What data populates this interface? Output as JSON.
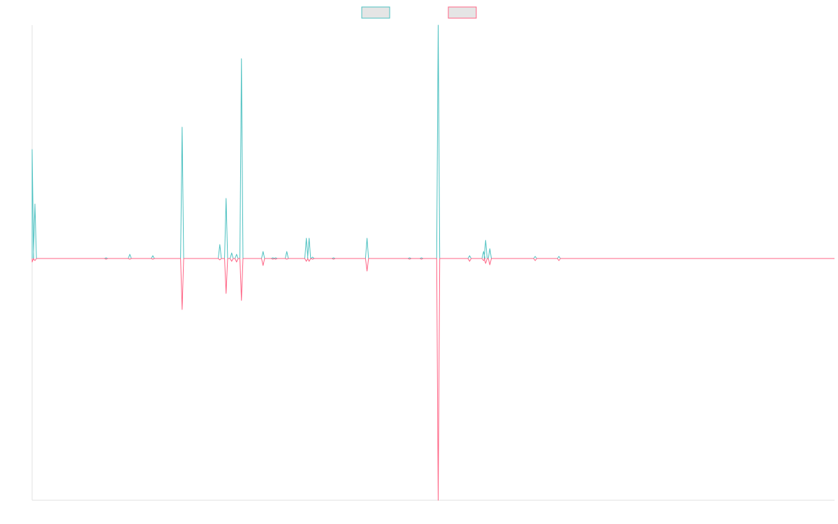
{
  "chart_data": {
    "type": "line",
    "title": "",
    "xlabel": "",
    "ylabel": "",
    "grid": false,
    "legend_position": "top-center",
    "x_range": [
      0,
      1150
    ],
    "y_range": [
      -346,
      334
    ],
    "colors": {
      "series_1": "#4bc0c0",
      "series_2": "#ff6384",
      "legend_fill": "#e5e5e5",
      "axis": "#e0e0e0"
    },
    "series": [
      {
        "name": "",
        "color": "#4bc0c0",
        "points": [
          [
            0,
            156
          ],
          [
            4,
            78
          ],
          [
            106,
            1
          ],
          [
            140,
            6
          ],
          [
            173,
            4
          ],
          [
            215,
            188
          ],
          [
            269,
            20
          ],
          [
            278,
            86
          ],
          [
            286,
            8
          ],
          [
            293,
            6
          ],
          [
            300,
            286
          ],
          [
            331,
            10
          ],
          [
            345,
            1
          ],
          [
            349,
            1
          ],
          [
            365,
            10
          ],
          [
            393,
            29
          ],
          [
            397,
            29
          ],
          [
            402,
            2
          ],
          [
            432,
            1
          ],
          [
            480,
            29
          ],
          [
            541,
            1
          ],
          [
            558,
            1
          ],
          [
            582,
            334
          ],
          [
            627,
            4
          ],
          [
            647,
            10
          ],
          [
            650,
            26
          ],
          [
            656,
            14
          ],
          [
            721,
            3
          ],
          [
            755,
            3
          ]
        ]
      },
      {
        "name": "",
        "color": "#ff6384",
        "points": [
          [
            0,
            -5
          ],
          [
            4,
            -3
          ],
          [
            106,
            -1
          ],
          [
            140,
            -1
          ],
          [
            173,
            -1
          ],
          [
            215,
            -73
          ],
          [
            269,
            -2
          ],
          [
            278,
            -50
          ],
          [
            286,
            -4
          ],
          [
            293,
            -5
          ],
          [
            300,
            -60
          ],
          [
            331,
            -10
          ],
          [
            345,
            -1
          ],
          [
            349,
            -1
          ],
          [
            365,
            -1
          ],
          [
            393,
            -4
          ],
          [
            397,
            -4
          ],
          [
            402,
            -1
          ],
          [
            432,
            -1
          ],
          [
            480,
            -18
          ],
          [
            541,
            -1
          ],
          [
            558,
            -1
          ],
          [
            582,
            -346
          ],
          [
            627,
            -4
          ],
          [
            647,
            -3
          ],
          [
            650,
            -7
          ],
          [
            656,
            -9
          ],
          [
            721,
            -3
          ],
          [
            755,
            -3
          ]
        ]
      }
    ]
  }
}
